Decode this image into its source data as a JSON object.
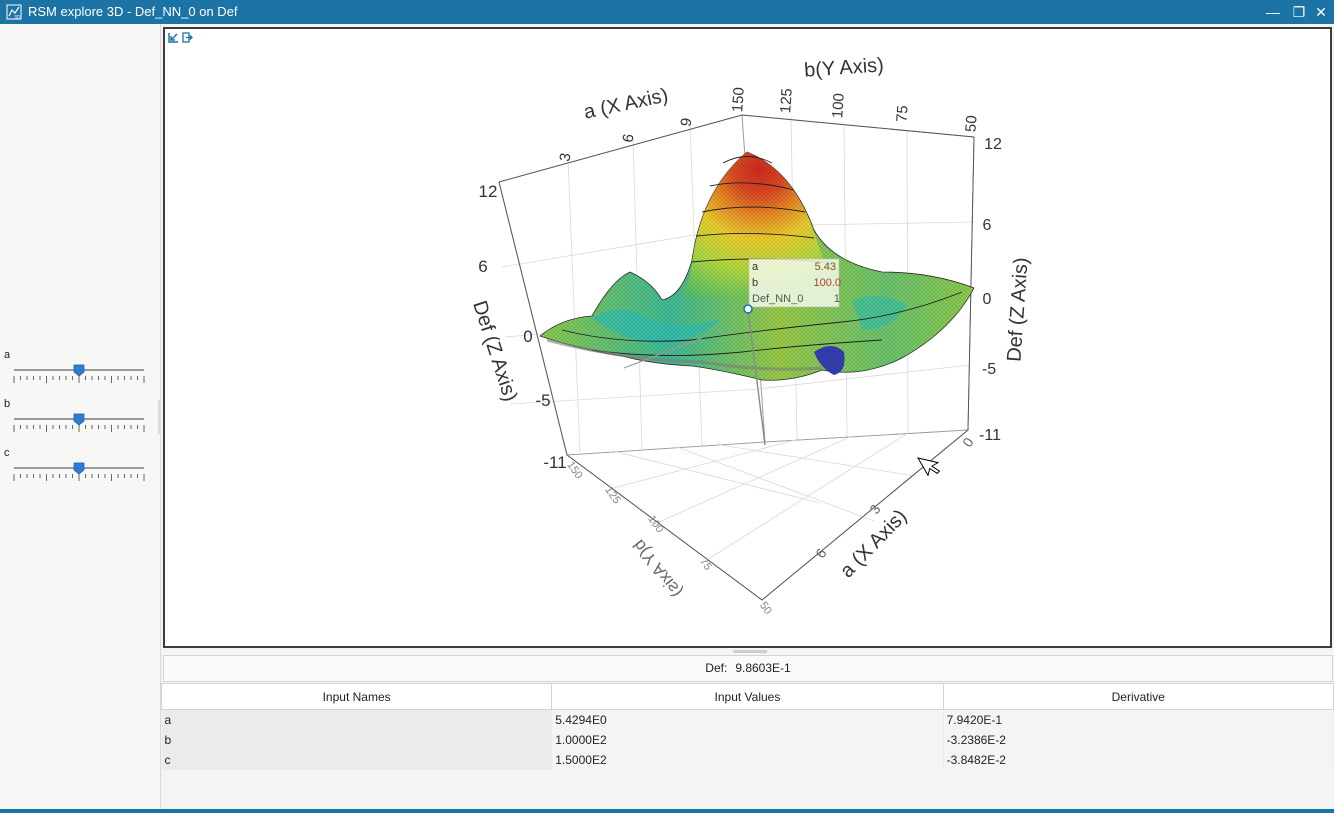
{
  "window": {
    "title": "RSM explore 3D - Def_NN_0 on Def",
    "minimize_glyph": "—",
    "restore_glyph": "❐",
    "close_glyph": "✕",
    "accent": "#1c73a5"
  },
  "sliders": [
    {
      "label": "a",
      "value_fraction": 0.5
    },
    {
      "label": "b",
      "value_fraction": 0.5
    },
    {
      "label": "c",
      "value_fraction": 0.5
    }
  ],
  "toolbar": {
    "icons": [
      "zoom-extent-icon",
      "export-icon"
    ]
  },
  "chart_data": {
    "type": "surface",
    "title": "",
    "x_axis": {
      "label": "a (X Axis)",
      "ticks": [
        "0",
        "3",
        "6",
        "9"
      ]
    },
    "y_axis": {
      "label": "b(Y Axis)",
      "ticks": [
        "150",
        "125",
        "100",
        "75",
        "50"
      ]
    },
    "z_axis": {
      "label": "Def (Z Axis)",
      "ticks_left": [
        "12",
        "6",
        "0",
        "-5",
        "-11"
      ],
      "ticks_right": [
        "12",
        "6",
        "0",
        "-5",
        "-11"
      ]
    },
    "grid": true,
    "colormap": [
      "#2b2fa8",
      "#2fb6c8",
      "#3fd08a",
      "#b7e03e",
      "#f2d52b",
      "#ef8a22",
      "#d7261c"
    ],
    "tooltip": {
      "rows": [
        {
          "name": "a",
          "value": "5.43"
        },
        {
          "name": "b",
          "value": "100.0"
        },
        {
          "name": "Def_NN_0",
          "value": "1"
        }
      ]
    }
  },
  "readout": {
    "label": "Def:",
    "value": "9.8603E-1"
  },
  "table": {
    "headers": [
      "Input Names",
      "Input Values",
      "Derivative"
    ],
    "rows": [
      {
        "name": "a",
        "value": "5.4294E0",
        "derivative": "7.9420E-1"
      },
      {
        "name": "b",
        "value": "1.0000E2",
        "derivative": "-3.2386E-2"
      },
      {
        "name": "c",
        "value": "1.5000E2",
        "derivative": "-3.8482E-2"
      }
    ]
  }
}
